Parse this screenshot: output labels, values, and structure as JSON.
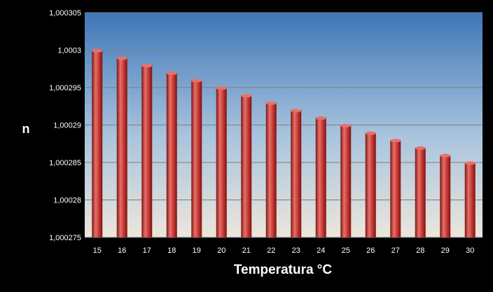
{
  "chart_data": {
    "type": "bar",
    "title": "",
    "xlabel": "Temperatura °C",
    "ylabel": "n",
    "categories": [
      "15",
      "16",
      "17",
      "18",
      "19",
      "20",
      "21",
      "22",
      "23",
      "24",
      "25",
      "26",
      "27",
      "28",
      "29",
      "30"
    ],
    "values": [
      1.0003,
      1.000299,
      1.000298,
      1.000297,
      1.000296,
      1.000295,
      1.000294,
      1.000293,
      1.000292,
      1.000291,
      1.00029,
      1.000289,
      1.000288,
      1.000287,
      1.000286,
      1.000285
    ],
    "ylim": [
      1.000275,
      1.000305
    ],
    "y_ticks": [
      "1,000275",
      "1,00028",
      "1,000285",
      "1,00029",
      "1,000295",
      "1,0003",
      "1,000305"
    ],
    "grid": true,
    "legend": "none",
    "colors": {
      "bar": "#c0332f",
      "bar_dark": "#7a1512",
      "bar_light": "#e8706a",
      "plot_top": "#3f76b8",
      "plot_bottom": "#ece6dc",
      "background": "#000000",
      "text": "#ffffff"
    }
  }
}
